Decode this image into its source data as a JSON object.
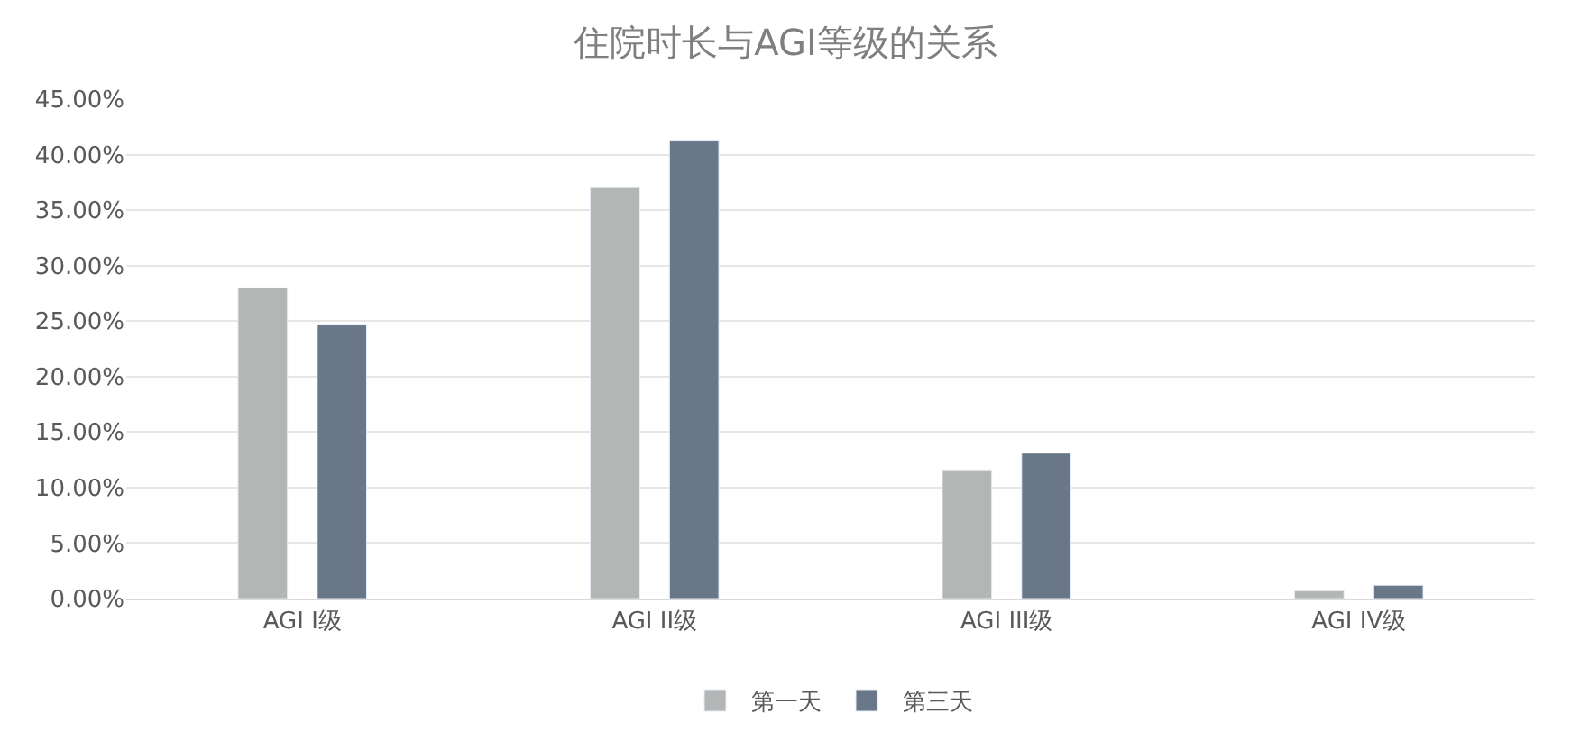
{
  "chart_data": {
    "type": "bar",
    "title": "住院时长与AGI等级的关系",
    "categories": [
      "AGI I级",
      "AGI II级",
      "AGI III级",
      "AGI IV级"
    ],
    "series": [
      {
        "name": "第一天",
        "color": "#b4b5b5",
        "values": [
          28.0,
          37.1,
          11.6,
          0.7
        ]
      },
      {
        "name": "第三天",
        "color": "#697789",
        "values": [
          24.7,
          41.3,
          13.1,
          1.2
        ]
      }
    ],
    "ylim": [
      0,
      45
    ],
    "yticks": [
      {
        "value": 0,
        "label": "0.00%"
      },
      {
        "value": 5,
        "label": "5.00%"
      },
      {
        "value": 10,
        "label": "10.00%"
      },
      {
        "value": 15,
        "label": "15.00%"
      },
      {
        "value": 20,
        "label": "20.00%"
      },
      {
        "value": 25,
        "label": "25.00%"
      },
      {
        "value": 30,
        "label": "30.00%"
      },
      {
        "value": 35,
        "label": "35.00%"
      },
      {
        "value": 40,
        "label": "40.00%"
      },
      {
        "value": 45,
        "label": "45.00%"
      }
    ],
    "grid": "y",
    "legend": "bottom"
  }
}
